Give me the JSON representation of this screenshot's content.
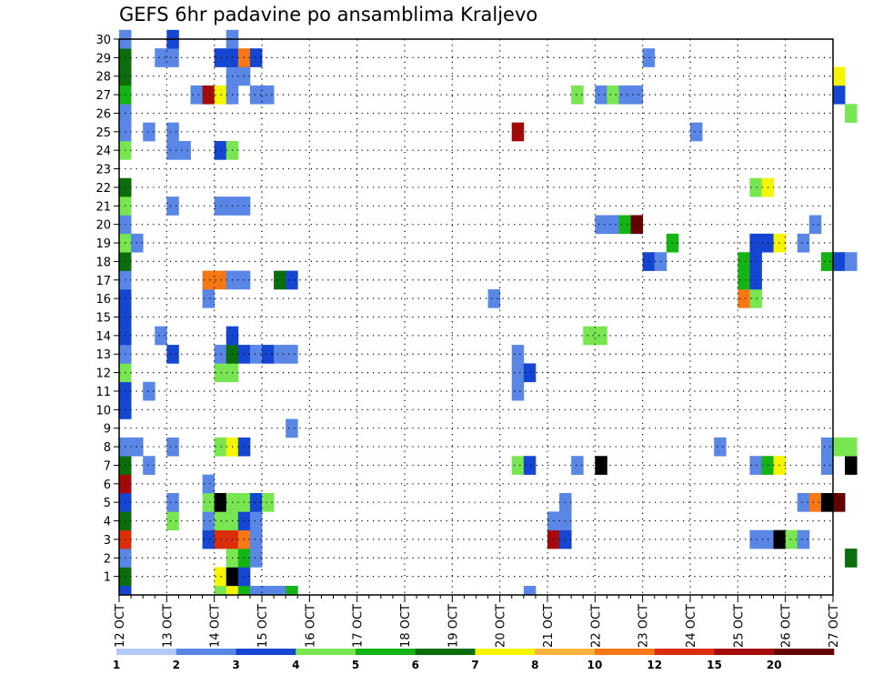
{
  "chart_data": {
    "type": "heatmap",
    "title": "GEFS 6hr padavine po ansamblima Kraljevo",
    "xlabel": "",
    "ylabel": "",
    "x_tick_labels": [
      "12 OCT",
      "13 OCT",
      "14 OCT",
      "15 OCT",
      "16 OCT",
      "17 OCT",
      "18 OCT",
      "19 OCT",
      "20 OCT",
      "21 OCT",
      "22 OCT",
      "23 OCT",
      "24 OCT",
      "25 OCT",
      "26 OCT",
      "27 OCT"
    ],
    "y_tick_labels": [
      "1",
      "2",
      "3",
      "4",
      "5",
      "6",
      "7",
      "8",
      "9",
      "10",
      "11",
      "12",
      "13",
      "14",
      "15",
      "16",
      "17",
      "18",
      "19",
      "20",
      "21",
      "22",
      "23",
      "24",
      "25",
      "26",
      "27",
      "28",
      "29",
      "30"
    ],
    "x_unit": "6-hour steps from 12 OCT 00Z",
    "ylim": [
      0,
      30
    ],
    "grid": true,
    "legend": {
      "placement": "bottom",
      "labels": [
        "1",
        "2",
        "3",
        "4",
        "5",
        "6",
        "7",
        "8",
        "10",
        "12",
        "15",
        "20"
      ],
      "colors": [
        "#b4c8f5",
        "#5a87e6",
        "#1446d2",
        "#78e650",
        "#14b414",
        "#0a6e0a",
        "#f5f500",
        "#fab43c",
        "#f57814",
        "#dc2d0a",
        "#a50a0a",
        "#640000"
      ]
    },
    "cells": [
      [
        0,
        0,
        2
      ],
      [
        0,
        1,
        5
      ],
      [
        0,
        2,
        1
      ],
      [
        0,
        3,
        9
      ],
      [
        0,
        4,
        5
      ],
      [
        0,
        5,
        2
      ],
      [
        0,
        6,
        10
      ],
      [
        0,
        7,
        5
      ],
      [
        0,
        8,
        1
      ],
      [
        0,
        10,
        2
      ],
      [
        0,
        11,
        2
      ],
      [
        0,
        12,
        3
      ],
      [
        0,
        13,
        1
      ],
      [
        0,
        14,
        2
      ],
      [
        0,
        15,
        2
      ],
      [
        0,
        16,
        2
      ],
      [
        0,
        17,
        1
      ],
      [
        0,
        18,
        5
      ],
      [
        0,
        19,
        3
      ],
      [
        0,
        20,
        1
      ],
      [
        0,
        21,
        3
      ],
      [
        0,
        22,
        5
      ],
      [
        0,
        24,
        3
      ],
      [
        0,
        25,
        1
      ],
      [
        0,
        26,
        1
      ],
      [
        0,
        27,
        4
      ],
      [
        0,
        28,
        5
      ],
      [
        0,
        29,
        5
      ],
      [
        0,
        30,
        1
      ],
      [
        1,
        8,
        1
      ],
      [
        1,
        19,
        1
      ],
      [
        2,
        7,
        1
      ],
      [
        2,
        11,
        1
      ],
      [
        2,
        25,
        1
      ],
      [
        3,
        14,
        1
      ],
      [
        3,
        29,
        1
      ],
      [
        4,
        4,
        3
      ],
      [
        4,
        5,
        1
      ],
      [
        4,
        8,
        1
      ],
      [
        4,
        13,
        2
      ],
      [
        4,
        21,
        1
      ],
      [
        4,
        24,
        1
      ],
      [
        4,
        25,
        1
      ],
      [
        4,
        29,
        1
      ],
      [
        4,
        30,
        2
      ],
      [
        5,
        24,
        1
      ],
      [
        6,
        27,
        1
      ],
      [
        7,
        3,
        2
      ],
      [
        7,
        4,
        1
      ],
      [
        7,
        5,
        3
      ],
      [
        7,
        6,
        1
      ],
      [
        7,
        16,
        1
      ],
      [
        7,
        17,
        8
      ],
      [
        7,
        27,
        10
      ],
      [
        8,
        0,
        3
      ],
      [
        8,
        1,
        6
      ],
      [
        8,
        3,
        9
      ],
      [
        8,
        4,
        3
      ],
      [
        8,
        5,
        12
      ],
      [
        8,
        8,
        3
      ],
      [
        8,
        12,
        3
      ],
      [
        8,
        13,
        1
      ],
      [
        8,
        17,
        8
      ],
      [
        8,
        21,
        1
      ],
      [
        8,
        24,
        2
      ],
      [
        8,
        27,
        6
      ],
      [
        8,
        29,
        2
      ],
      [
        9,
        0,
        6
      ],
      [
        9,
        1,
        12
      ],
      [
        9,
        2,
        3
      ],
      [
        9,
        3,
        9
      ],
      [
        9,
        4,
        3
      ],
      [
        9,
        5,
        3
      ],
      [
        9,
        8,
        6
      ],
      [
        9,
        12,
        3
      ],
      [
        9,
        13,
        5
      ],
      [
        9,
        14,
        2
      ],
      [
        9,
        17,
        1
      ],
      [
        9,
        21,
        1
      ],
      [
        9,
        24,
        3
      ],
      [
        9,
        27,
        1
      ],
      [
        9,
        28,
        1
      ],
      [
        9,
        29,
        2
      ],
      [
        9,
        30,
        1
      ],
      [
        10,
        0,
        4
      ],
      [
        10,
        1,
        2
      ],
      [
        10,
        2,
        4
      ],
      [
        10,
        3,
        8
      ],
      [
        10,
        4,
        2
      ],
      [
        10,
        5,
        3
      ],
      [
        10,
        8,
        2
      ],
      [
        10,
        13,
        2
      ],
      [
        10,
        17,
        1
      ],
      [
        10,
        21,
        1
      ],
      [
        10,
        28,
        1
      ],
      [
        10,
        29,
        8
      ],
      [
        11,
        0,
        1
      ],
      [
        11,
        2,
        1
      ],
      [
        11,
        3,
        1
      ],
      [
        11,
        4,
        1
      ],
      [
        11,
        5,
        2
      ],
      [
        11,
        13,
        1
      ],
      [
        11,
        27,
        1
      ],
      [
        11,
        29,
        2
      ],
      [
        12,
        0,
        1
      ],
      [
        12,
        5,
        3
      ],
      [
        12,
        13,
        2
      ],
      [
        12,
        27,
        1
      ],
      [
        13,
        0,
        1
      ],
      [
        13,
        13,
        1
      ],
      [
        13,
        17,
        5
      ],
      [
        14,
        0,
        4
      ],
      [
        14,
        9,
        1
      ],
      [
        14,
        13,
        1
      ],
      [
        14,
        17,
        2
      ],
      [
        31,
        16,
        1
      ],
      [
        33,
        7,
        3
      ],
      [
        33,
        11,
        1
      ],
      [
        33,
        12,
        1
      ],
      [
        33,
        13,
        1
      ],
      [
        33,
        25,
        10
      ],
      [
        34,
        0,
        1
      ],
      [
        34,
        7,
        2
      ],
      [
        34,
        12,
        2
      ],
      [
        36,
        3,
        10
      ],
      [
        36,
        4,
        1
      ],
      [
        37,
        3,
        2
      ],
      [
        37,
        4,
        1
      ],
      [
        37,
        5,
        1
      ],
      [
        38,
        7,
        1
      ],
      [
        38,
        27,
        3
      ],
      [
        39,
        14,
        3
      ],
      [
        40,
        7,
        13
      ],
      [
        40,
        14,
        3
      ],
      [
        40,
        20,
        1
      ],
      [
        40,
        27,
        1
      ],
      [
        41,
        20,
        1
      ],
      [
        41,
        27,
        3
      ],
      [
        42,
        20,
        4
      ],
      [
        42,
        27,
        1
      ],
      [
        43,
        20,
        11
      ],
      [
        43,
        27,
        1
      ],
      [
        44,
        18,
        2
      ],
      [
        44,
        29,
        1
      ],
      [
        45,
        18,
        1
      ],
      [
        46,
        19,
        4
      ],
      [
        48,
        25,
        1
      ],
      [
        50,
        8,
        1
      ],
      [
        52,
        16,
        8
      ],
      [
        52,
        17,
        4
      ],
      [
        52,
        18,
        4
      ],
      [
        53,
        3,
        1
      ],
      [
        53,
        7,
        1
      ],
      [
        53,
        16,
        3
      ],
      [
        53,
        17,
        2
      ],
      [
        53,
        18,
        2
      ],
      [
        53,
        19,
        2
      ],
      [
        53,
        22,
        3
      ],
      [
        54,
        3,
        1
      ],
      [
        54,
        7,
        4
      ],
      [
        54,
        19,
        2
      ],
      [
        54,
        22,
        6
      ],
      [
        55,
        3,
        12
      ],
      [
        55,
        7,
        6
      ],
      [
        55,
        19,
        6
      ],
      [
        56,
        3,
        3
      ],
      [
        57,
        3,
        1
      ],
      [
        57,
        5,
        1
      ],
      [
        57,
        19,
        1
      ],
      [
        58,
        5,
        8
      ],
      [
        58,
        20,
        1
      ],
      [
        59,
        5,
        12
      ],
      [
        59,
        7,
        1
      ],
      [
        59,
        8,
        1
      ],
      [
        59,
        18,
        4
      ],
      [
        60,
        5,
        11
      ],
      [
        60,
        8,
        3
      ],
      [
        60,
        18,
        2
      ],
      [
        60,
        27,
        2
      ],
      [
        60,
        28,
        6
      ],
      [
        61,
        2,
        5
      ],
      [
        61,
        7,
        13
      ],
      [
        61,
        8,
        3
      ],
      [
        61,
        18,
        1
      ],
      [
        61,
        26,
        3
      ]
    ]
  }
}
